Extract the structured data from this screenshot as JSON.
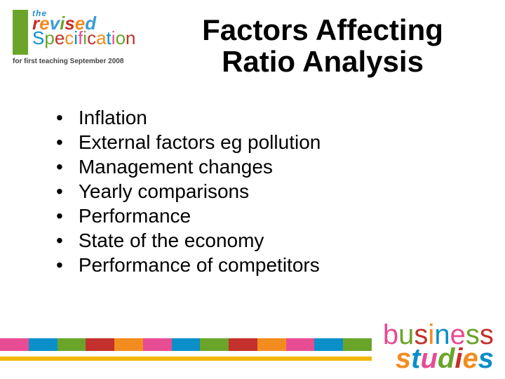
{
  "logo": {
    "the": "the",
    "revised": "revised",
    "specification": "Specification",
    "subtitle": "for first teaching September 2008"
  },
  "title": "Factors Affecting Ratio Analysis",
  "bullets": [
    "Inflation",
    "External factors eg pollution",
    "Management changes",
    "Yearly comparisons",
    "Performance",
    "State of the economy",
    "Performance of competitors"
  ],
  "colorbar": {
    "colors": [
      "#e84c93",
      "#0a8fc9",
      "#6aa52a",
      "#c4302b",
      "#f28c1f",
      "#e84c93",
      "#0a8fc9",
      "#6aa52a",
      "#c4302b",
      "#f28c1f",
      "#e84c93",
      "#0a8fc9",
      "#6aa52a"
    ],
    "strip_color": "#f2b705"
  },
  "footer_logo": {
    "business": "business",
    "studies": "studies"
  }
}
